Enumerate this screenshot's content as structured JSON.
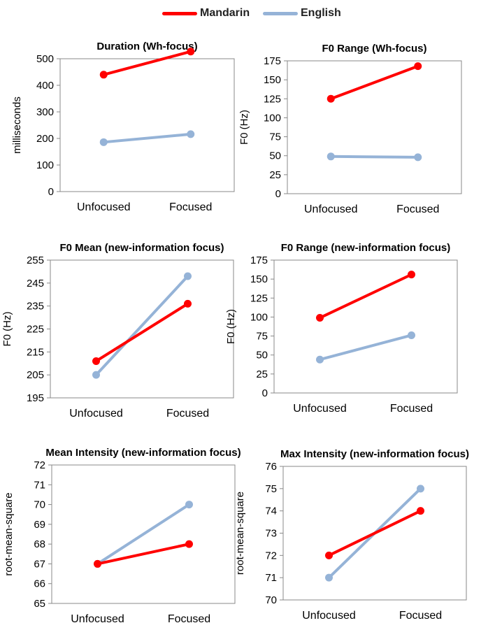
{
  "legend": {
    "series": [
      {
        "name": "Mandarin",
        "color": "#ff0000"
      },
      {
        "name": "English",
        "color": "#95b3d7"
      }
    ]
  },
  "chart_data": [
    {
      "type": "line",
      "title": "Duration (Wh-focus)",
      "xlabel": "",
      "ylabel": "milliseconds",
      "categories": [
        "Unfocused",
        "Focused"
      ],
      "ylim": [
        0,
        500
      ],
      "yticks": [
        "0",
        "100",
        "200",
        "300",
        "400",
        "500"
      ],
      "series": [
        {
          "name": "Mandarin",
          "values": [
            440,
            527
          ]
        },
        {
          "name": "English",
          "values": [
            186,
            216
          ]
        }
      ]
    },
    {
      "type": "line",
      "title": "F0 Range (Wh-focus)",
      "xlabel": "",
      "ylabel": "F0 (Hz)",
      "categories": [
        "Unfocused",
        "Focused"
      ],
      "ylim": [
        0,
        175
      ],
      "yticks": [
        "0",
        "25",
        "50",
        "75",
        "100",
        "125",
        "150",
        "175"
      ],
      "series": [
        {
          "name": "Mandarin",
          "values": [
            125,
            168
          ]
        },
        {
          "name": "English",
          "values": [
            49,
            48
          ]
        }
      ]
    },
    {
      "type": "line",
      "title": "F0 Mean (new-information focus)",
      "xlabel": "",
      "ylabel": "F0 (Hz)",
      "categories": [
        "Unfocused",
        "Focused"
      ],
      "ylim": [
        195,
        255
      ],
      "yticks": [
        "195",
        "205",
        "215",
        "225",
        "235",
        "245",
        "255"
      ],
      "series": [
        {
          "name": "Mandarin",
          "values": [
            211,
            236
          ]
        },
        {
          "name": "English",
          "values": [
            205,
            248
          ]
        }
      ]
    },
    {
      "type": "line",
      "title": "F0 Range (new-information focus)",
      "xlabel": "",
      "ylabel": "F0 (Hz)",
      "categories": [
        "Unfocused",
        "Focused"
      ],
      "ylim": [
        0,
        175
      ],
      "yticks": [
        "0",
        "25",
        "50",
        "75",
        "100",
        "125",
        "150",
        "175"
      ],
      "series": [
        {
          "name": "Mandarin",
          "values": [
            99,
            156
          ]
        },
        {
          "name": "English",
          "values": [
            44,
            76
          ]
        }
      ]
    },
    {
      "type": "line",
      "title": "Mean Intensity (new-information focus)",
      "xlabel": "",
      "ylabel": "root-mean-square",
      "categories": [
        "Unfocused",
        "Focused"
      ],
      "ylim": [
        65,
        72
      ],
      "yticks": [
        "65",
        "66",
        "67",
        "68",
        "69",
        "70",
        "71",
        "72"
      ],
      "series": [
        {
          "name": "Mandarin",
          "values": [
            67,
            68
          ]
        },
        {
          "name": "English",
          "values": [
            67,
            70
          ]
        }
      ]
    },
    {
      "type": "line",
      "title": "Max Intensity (new-information focus)",
      "xlabel": "",
      "ylabel": "root-mean-square",
      "categories": [
        "Unfocused",
        "Focused"
      ],
      "ylim": [
        70,
        76
      ],
      "yticks": [
        "70",
        "71",
        "72",
        "73",
        "74",
        "75",
        "76"
      ],
      "series": [
        {
          "name": "Mandarin",
          "values": [
            72,
            74
          ]
        },
        {
          "name": "English",
          "values": [
            71,
            75
          ]
        }
      ]
    }
  ]
}
